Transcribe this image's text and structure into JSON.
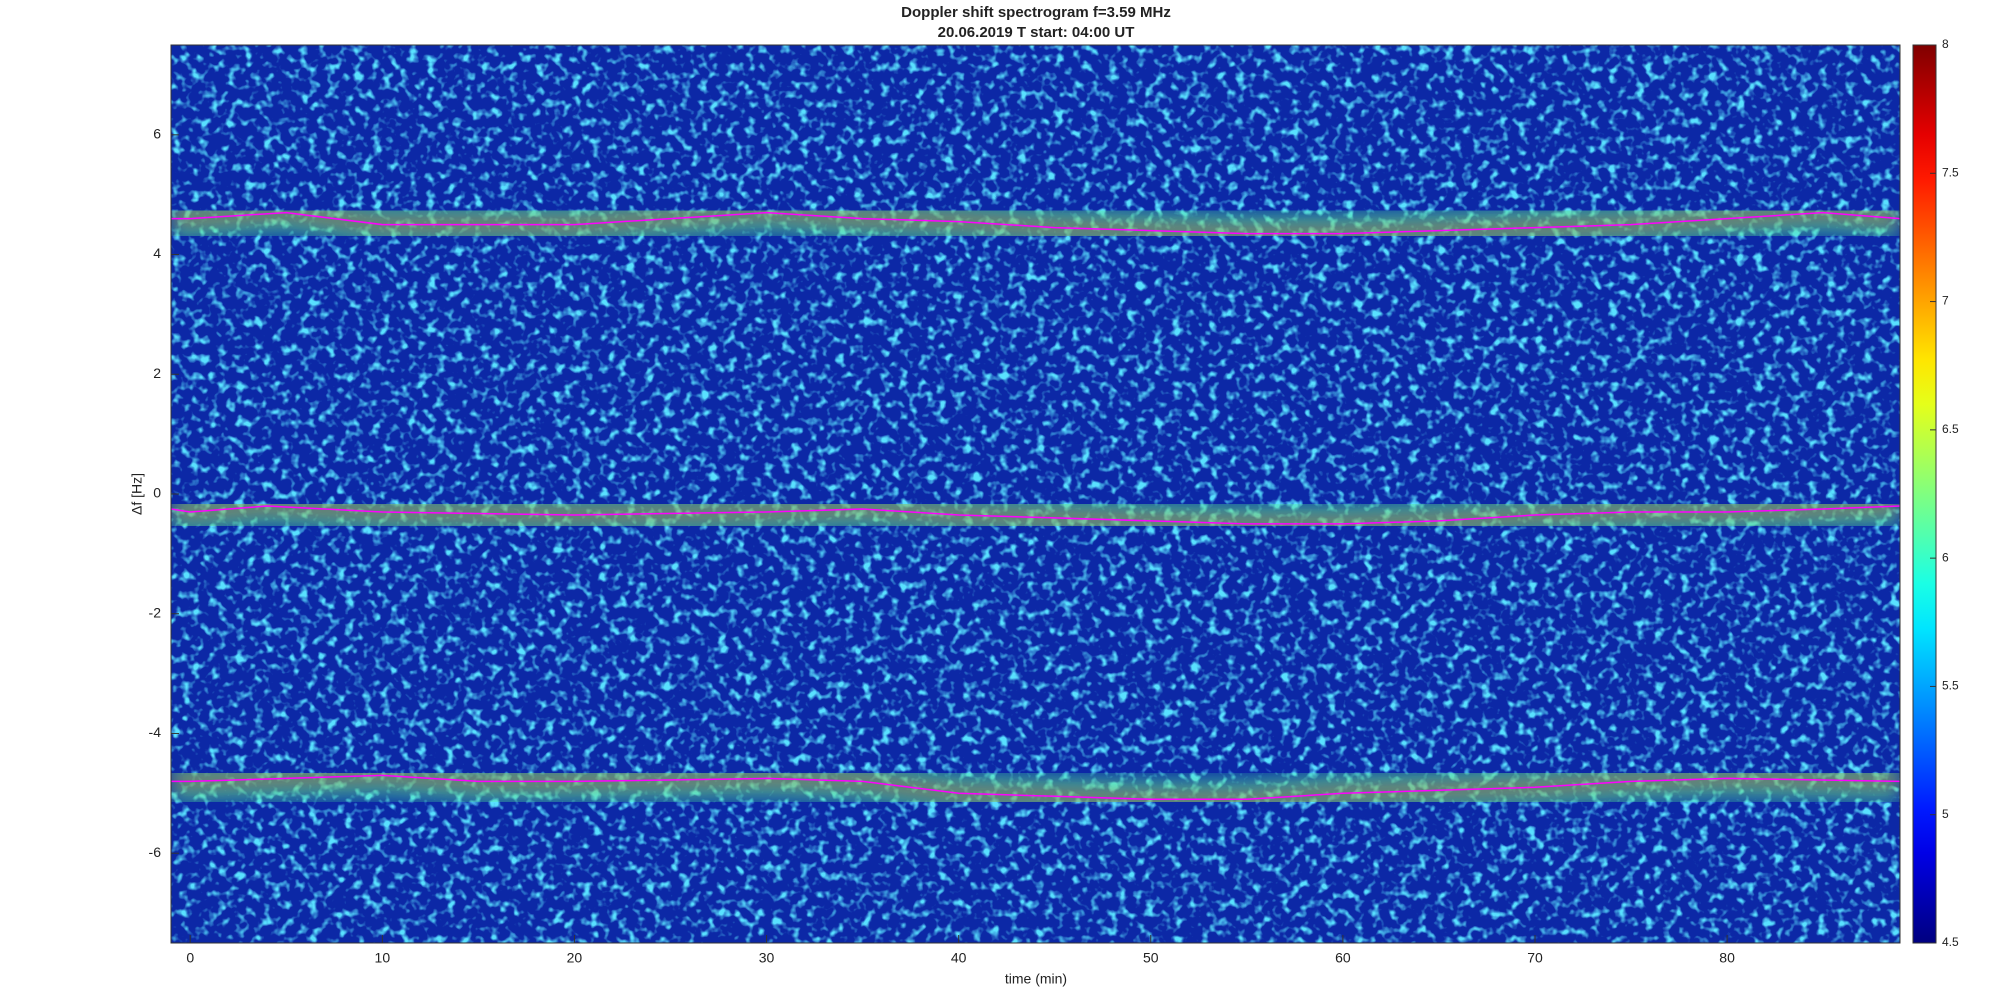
{
  "chart_data": {
    "type": "spectrogram",
    "title": "Doppler shift spectrogram f=3.59 MHz",
    "subtitle": "20.06.2019   T start: 04:00 UT",
    "xlabel": "time (min)",
    "ylabel": "Δf [Hz]",
    "xlim": [
      -1,
      89
    ],
    "xticks": [
      0,
      10,
      20,
      30,
      40,
      50,
      60,
      70,
      80
    ],
    "ylim": [
      -7.5,
      7.5
    ],
    "yticks": [
      -6,
      -4,
      -2,
      0,
      2,
      4,
      6
    ],
    "colormap": "jet",
    "clim": [
      4.5,
      8
    ],
    "cticks": [
      4.5,
      5,
      5.5,
      6,
      6.5,
      7,
      7.5,
      8
    ],
    "series": [
      {
        "color": "#ff00ff",
        "x": [
          -1,
          0,
          5,
          10,
          20,
          25,
          30,
          35,
          40,
          45,
          50,
          55,
          60,
          65,
          70,
          75,
          80,
          85,
          89
        ],
        "values": [
          4.6,
          4.6,
          4.7,
          4.5,
          4.5,
          4.6,
          4.7,
          4.6,
          4.55,
          4.45,
          4.4,
          4.35,
          4.35,
          4.4,
          4.45,
          4.5,
          4.6,
          4.7,
          4.6
        ]
      },
      {
        "color": "#ff00ff",
        "x": [
          -1,
          0,
          4,
          10,
          20,
          30,
          35,
          40,
          45,
          50,
          55,
          60,
          65,
          70,
          75,
          80,
          85,
          89
        ],
        "values": [
          -0.25,
          -0.3,
          -0.2,
          -0.3,
          -0.35,
          -0.3,
          -0.25,
          -0.35,
          -0.4,
          -0.45,
          -0.5,
          -0.5,
          -0.45,
          -0.35,
          -0.3,
          -0.3,
          -0.25,
          -0.2
        ]
      },
      {
        "color": "#ff00ff",
        "x": [
          -1,
          0,
          5,
          10,
          15,
          20,
          30,
          35,
          40,
          45,
          50,
          55,
          60,
          65,
          70,
          75,
          80,
          89
        ],
        "values": [
          -4.8,
          -4.8,
          -4.75,
          -4.7,
          -4.8,
          -4.8,
          -4.75,
          -4.8,
          -5.0,
          -5.05,
          -5.1,
          -5.1,
          -5.0,
          -4.95,
          -4.9,
          -4.8,
          -4.75,
          -4.8
        ]
      }
    ]
  }
}
